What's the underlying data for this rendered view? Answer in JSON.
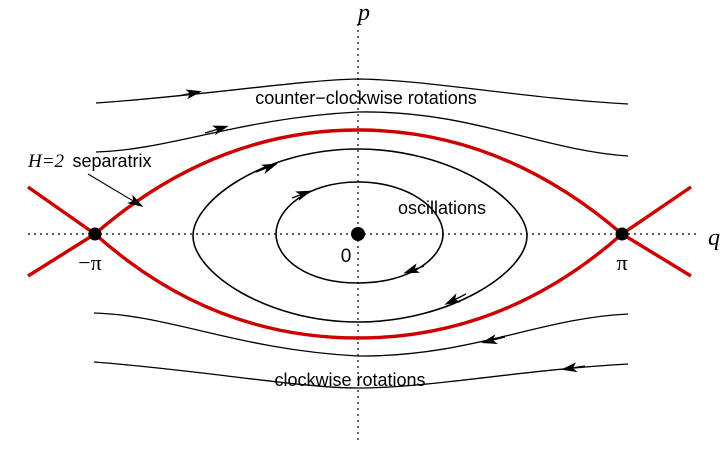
{
  "axes": {
    "horizontal_label": "q",
    "vertical_label": "p"
  },
  "points": {
    "left_label": "−π",
    "center_label": "0",
    "right_label": "π"
  },
  "labels": {
    "top_region": "counter−clockwise rotations",
    "center_region": "oscillations",
    "bottom_region": "clockwise rotations",
    "separatrix_math": "H=2",
    "separatrix_text": "separatrix"
  },
  "colors": {
    "separatrix": "#cc0000",
    "curves": "#000000",
    "axes": "#000000"
  }
}
